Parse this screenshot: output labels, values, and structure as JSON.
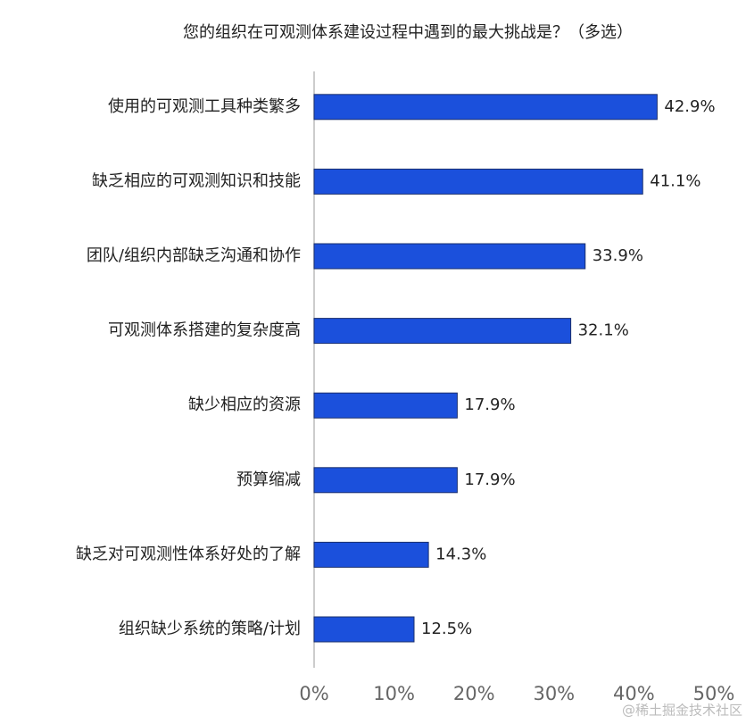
{
  "chart_data": {
    "type": "bar",
    "orientation": "horizontal",
    "title": "您的组织在可观测体系建设过程中遇到的最大挑战是？（多选）",
    "categories": [
      "使用的可观测工具种类繁多",
      "缺乏相应的可观测知识和技能",
      "团队/组织内部缺乏沟通和协作",
      "可观测体系搭建的复杂度高",
      "缺少相应的资源",
      "预算缩减",
      "缺乏对可观测性体系好处的了解",
      "组织缺少系统的策略/计划"
    ],
    "values": [
      42.9,
      41.1,
      33.9,
      32.1,
      17.9,
      17.9,
      14.3,
      12.5
    ],
    "value_labels": [
      "42.9%",
      "41.1%",
      "33.9%",
      "32.1%",
      "17.9%",
      "17.9%",
      "14.3%",
      "12.5%"
    ],
    "color": "#1b50dc",
    "xlim": [
      0,
      50
    ],
    "xticks": [
      {
        "value": 0,
        "label": "0%"
      },
      {
        "value": 10,
        "label": "10%"
      },
      {
        "value": 20,
        "label": "20%"
      },
      {
        "value": 30,
        "label": "30%"
      },
      {
        "value": 40,
        "label": "40%"
      },
      {
        "value": 50,
        "label": "50%"
      }
    ],
    "grid": false,
    "watermark": "@稀土掘金技术社区"
  }
}
